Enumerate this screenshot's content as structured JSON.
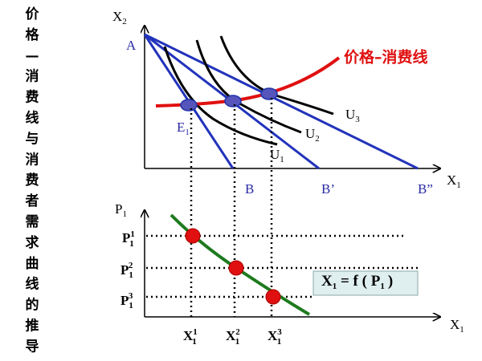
{
  "side_title": [
    "价",
    "格",
    "—",
    "消",
    "费",
    "线",
    "与",
    "消",
    "费",
    "者",
    "需",
    "求",
    "曲",
    "线",
    "的",
    "推",
    "导"
  ],
  "upper": {
    "y_axis": {
      "base": "X",
      "sub": "2"
    },
    "x_axis": {
      "base": "X",
      "sub": "1"
    },
    "point_a": "A",
    "point_e": {
      "base": "E",
      "sub": "1"
    },
    "curves": [
      {
        "base": "U",
        "sub": "1"
      },
      {
        "base": "U",
        "sub": "2"
      },
      {
        "base": "U",
        "sub": "3"
      }
    ],
    "intercepts": [
      "B",
      "B’",
      "B”"
    ],
    "pcc_label": "价格–消费线"
  },
  "lower": {
    "y_axis": {
      "base": "P",
      "sub": "1"
    },
    "x_axis": {
      "base": "X",
      "sub": "1"
    },
    "prices": [
      {
        "base": "P",
        "sup": "1",
        "sub": "1"
      },
      {
        "base": "P",
        "sub": "1",
        "sup": "2"
      },
      {
        "base": "P",
        "sub": "1",
        "sup": "3"
      }
    ],
    "quantities": [
      {
        "base": "X",
        "sup": "1",
        "sub": "1"
      },
      {
        "base": "X",
        "sup": "2",
        "sub": "1"
      },
      {
        "base": "X",
        "sup": "3",
        "sub": "1"
      }
    ],
    "formula": {
      "left": "X",
      "left_sub": "1",
      "middle": " = f ( P",
      "right_sub": "1",
      "end": ")"
    }
  }
}
